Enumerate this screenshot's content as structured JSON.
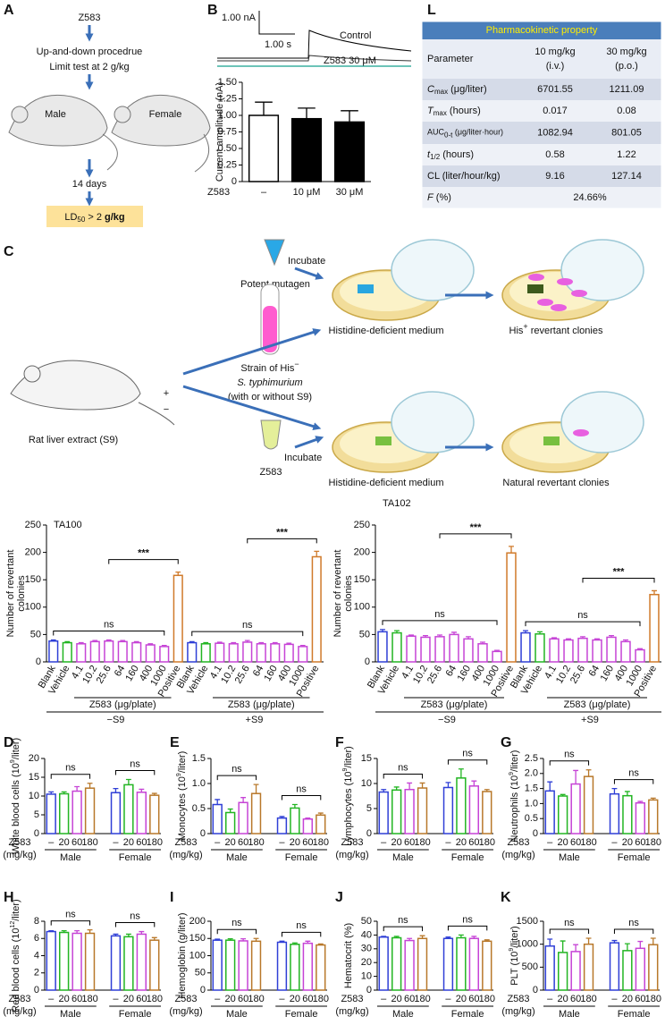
{
  "panel_labels": [
    "A",
    "B",
    "C",
    "D",
    "E",
    "F",
    "G",
    "H",
    "I",
    "J",
    "K",
    "L"
  ],
  "panel_a": {
    "start": "Z583",
    "step1": "Up-and-down procedrue",
    "step2": "Limit test at 2 g/kg",
    "male": "Male",
    "female": "Female",
    "duration": "14 days",
    "result": {
      "main": "LD",
      "sub": "50",
      "rest": " > 2 ",
      "unit": "g/kg"
    }
  },
  "panel_b_trace": {
    "scale_current": "1.00 nA",
    "scale_time": "1.00 s",
    "control": "Control",
    "treated": "Z583 30 μM"
  },
  "panel_c": {
    "incubate": "Incubate",
    "mutagen": "Potent mutagen",
    "extract": "Rat liver extract (S9)",
    "plus": "+",
    "minus": "−",
    "strain": "Strain of His",
    "strain_sup": "−",
    "species": "S. typhimurium",
    "strain_note": "(with or without S9)",
    "compound": "Z583",
    "medium": "Histidine-deficient medium",
    "his": "His",
    "his_sup": "+",
    "revertant": " revertant clonies",
    "natural": "Natural revertant clonies"
  },
  "table": {
    "title": "Pharmacokinetic property",
    "header": [
      [
        "Parameter"
      ],
      [
        "10 mg/kg",
        "(i.v.)"
      ],
      [
        "30 mg/kg",
        "(p.o.)"
      ]
    ],
    "rows": [
      {
        "parameter": [
          {
            "text": "C",
            "style": "italic"
          },
          {
            "text": "max",
            "style": "sub"
          },
          {
            "text": " (μg/liter)"
          }
        ],
        "values": [
          "6701.55",
          "1211.09"
        ]
      },
      {
        "parameter": [
          {
            "text": "T",
            "style": "italic"
          },
          {
            "text": "max",
            "style": "sub"
          },
          {
            "text": " (hours)"
          }
        ],
        "values": [
          "0.017",
          "0.08"
        ]
      },
      {
        "parameter": [
          {
            "text": "AUC",
            "style": "small"
          },
          {
            "text": "0-t",
            "style": "sub"
          },
          {
            "text": " (μg/liter·hour)",
            "style": "small"
          }
        ],
        "values": [
          "1082.94",
          "801.05"
        ]
      },
      {
        "parameter": [
          {
            "text": "t",
            "style": "italic"
          },
          {
            "text": "1/2",
            "style": "sub"
          },
          {
            "text": " (hours)"
          }
        ],
        "values": [
          "0.58",
          "1.22"
        ]
      },
      {
        "parameter": [
          {
            "text": "CL (liter/hour/kg)"
          }
        ],
        "values": [
          "9.16",
          "127.14"
        ]
      },
      {
        "parameter": [
          {
            "text": "F",
            "style": "italic"
          },
          {
            "text": " (%)"
          }
        ],
        "values": [
          "24.66%"
        ]
      }
    ]
  },
  "chart_data": [
    {
      "type": "bar",
      "bar_fill": "solid",
      "y_label": "Current amplitude (nA)",
      "x_label": "Z583",
      "categories": [
        "–",
        "10 μM",
        "30 μM"
      ],
      "values": [
        1.0,
        0.95,
        0.9
      ],
      "errors": [
        0.2,
        0.16,
        0.17
      ],
      "colors": [
        "#ffffff",
        "#000000",
        "#000000"
      ],
      "ylim": [
        0,
        1.5
      ],
      "yticks": [
        0,
        0.25,
        {
          "value": 0.5,
          "label": "0.50"
        },
        0.75,
        {
          "value": 1,
          "label": "1.00"
        },
        1.25,
        {
          "value": 1.5,
          "label": "1.50"
        }
      ]
    },
    {
      "type": "bar",
      "bar_fill": "outline",
      "title": "TA100",
      "y_label": [
        "Number of revertant",
        "colonies"
      ],
      "categories": [
        "Blank",
        "Vehicle",
        "4.1",
        "10.2",
        "25.6",
        "64",
        "160",
        "400",
        "1000",
        "Positive",
        "Blank",
        "Vehicle",
        "4.1",
        "10.2",
        "25.6",
        "64",
        "160",
        "400",
        "1000",
        "Positive"
      ],
      "values": [
        38,
        35,
        33,
        37,
        38,
        37,
        35,
        31,
        28,
        158,
        35,
        33,
        34,
        33,
        36,
        33,
        33,
        32,
        28,
        192
      ],
      "errors": [
        2,
        2,
        2,
        2,
        2,
        2,
        2,
        2,
        2,
        6,
        2,
        2,
        2,
        2,
        3,
        2,
        2,
        2,
        2,
        10
      ],
      "colors": [
        "#2f3fd6",
        "#22b522",
        "#c644d6",
        "#c644d6",
        "#c644d6",
        "#c644d6",
        "#c644d6",
        "#c644d6",
        "#c644d6",
        "#d07a2a",
        "#2f3fd6",
        "#22b522",
        "#c644d6",
        "#c644d6",
        "#c644d6",
        "#c644d6",
        "#c644d6",
        "#c644d6",
        "#c644d6",
        "#d07a2a"
      ],
      "group_axis": "Z583 (μg/plate)",
      "groups": [
        "−S9",
        "+S9"
      ],
      "annotations": [
        "ns",
        "***",
        "ns",
        "***"
      ],
      "ylim": [
        0,
        250
      ],
      "yticks": [
        0,
        50,
        100,
        150,
        200,
        250
      ]
    },
    {
      "type": "bar",
      "bar_fill": "outline",
      "title": "TA102",
      "y_label": [
        "Number of revertant",
        "colonies"
      ],
      "categories": [
        "Blank",
        "Vehicle",
        "4.1",
        "10.2",
        "25.6",
        "64",
        "160",
        "400",
        "1000",
        "Positive",
        "Blank",
        "Vehicle",
        "4.1",
        "10.2",
        "25.6",
        "64",
        "160",
        "400",
        "1000",
        "Positive"
      ],
      "values": [
        55,
        53,
        47,
        45,
        46,
        50,
        42,
        33,
        19,
        199,
        53,
        51,
        42,
        40,
        43,
        40,
        45,
        37,
        22,
        123
      ],
      "errors": [
        4,
        4,
        2,
        3,
        3,
        4,
        4,
        3,
        2,
        12,
        4,
        4,
        2,
        2,
        3,
        2,
        3,
        3,
        2,
        7
      ],
      "colors": [
        "#2f3fd6",
        "#22b522",
        "#c644d6",
        "#c644d6",
        "#c644d6",
        "#c644d6",
        "#c644d6",
        "#c644d6",
        "#c644d6",
        "#d07a2a",
        "#2f3fd6",
        "#22b522",
        "#c644d6",
        "#c644d6",
        "#c644d6",
        "#c644d6",
        "#c644d6",
        "#c644d6",
        "#c644d6",
        "#d07a2a"
      ],
      "group_axis": "Z583 (μg/plate)",
      "groups": [
        "−S9",
        "+S9"
      ],
      "annotations": [
        "ns",
        "***",
        "ns",
        "***"
      ],
      "ylim": [
        0,
        250
      ],
      "yticks": [
        0,
        50,
        100,
        150,
        200,
        250
      ]
    },
    {
      "type": "bar",
      "bar_fill": "outline",
      "y_label": [
        "White blood cells (10",
        "9",
        "/liter)"
      ],
      "x_label": [
        "Z583",
        "(mg/kg)"
      ],
      "categories": [
        "–",
        "20",
        "60",
        "180",
        "–",
        "20",
        "60",
        "180"
      ],
      "values": [
        10.5,
        10.6,
        11.3,
        12.1,
        10.9,
        13.0,
        11.0,
        10.2
      ],
      "errors": [
        0.6,
        0.5,
        1.2,
        1.3,
        1.1,
        1.4,
        0.8,
        0.5
      ],
      "colors": [
        "#2f3fd6",
        "#22b522",
        "#c644d6",
        "#b8782a",
        "#2f3fd6",
        "#22b522",
        "#c644d6",
        "#b8782a"
      ],
      "groups": [
        "Male",
        "Female"
      ],
      "annotations": [
        "ns",
        "ns"
      ],
      "ylim": [
        0,
        20
      ],
      "yticks": [
        0,
        5,
        10,
        15,
        20
      ]
    },
    {
      "type": "bar",
      "bar_fill": "outline",
      "y_label": [
        "Monocytes (10",
        "9",
        "/liter)"
      ],
      "x_label": [
        "Z583",
        "(mg/kg)"
      ],
      "categories": [
        "–",
        "20",
        "60",
        "180",
        "–",
        "20",
        "60",
        "180"
      ],
      "values": [
        0.58,
        0.42,
        0.62,
        0.8,
        0.31,
        0.51,
        0.29,
        0.37
      ],
      "errors": [
        0.1,
        0.07,
        0.1,
        0.18,
        0.03,
        0.07,
        0.02,
        0.04
      ],
      "colors": [
        "#2f3fd6",
        "#22b522",
        "#c644d6",
        "#b8782a",
        "#2f3fd6",
        "#22b522",
        "#c644d6",
        "#b8782a"
      ],
      "groups": [
        "Male",
        "Female"
      ],
      "annotations": [
        "ns",
        "ns"
      ],
      "ylim": [
        0,
        1.5
      ],
      "yticks": [
        0,
        0.5,
        {
          "value": 1,
          "label": "1.0"
        },
        1.5
      ]
    },
    {
      "type": "bar",
      "bar_fill": "outline",
      "y_label": [
        "Lymphocytes (10",
        "9",
        "/liter)"
      ],
      "x_label": [
        "Z583",
        "(mg/kg)"
      ],
      "categories": [
        "–",
        "20",
        "60",
        "180",
        "–",
        "20",
        "60",
        "180"
      ],
      "values": [
        8.3,
        8.7,
        8.8,
        9.1,
        9.2,
        11.1,
        9.5,
        8.4
      ],
      "errors": [
        0.5,
        0.6,
        1.3,
        1.0,
        1.0,
        1.8,
        1.0,
        0.4
      ],
      "colors": [
        "#2f3fd6",
        "#22b522",
        "#c644d6",
        "#b8782a",
        "#2f3fd6",
        "#22b522",
        "#c644d6",
        "#b8782a"
      ],
      "groups": [
        "Male",
        "Female"
      ],
      "annotations": [
        "ns",
        "ns"
      ],
      "ylim": [
        0,
        15
      ],
      "yticks": [
        0,
        5,
        10,
        15
      ]
    },
    {
      "type": "bar",
      "bar_fill": "outline",
      "y_label": [
        "Neutrophils (10",
        "9",
        "/liter)"
      ],
      "x_label": [
        "Z583",
        "(mg/kg)"
      ],
      "categories": [
        "–",
        "20",
        "60",
        "180",
        "–",
        "20",
        "60",
        "180"
      ],
      "values": [
        1.42,
        1.25,
        1.65,
        1.9,
        1.32,
        1.26,
        1.02,
        1.12
      ],
      "errors": [
        0.3,
        0.05,
        0.45,
        0.22,
        0.18,
        0.14,
        0.05,
        0.06
      ],
      "colors": [
        "#2f3fd6",
        "#22b522",
        "#c644d6",
        "#b8782a",
        "#2f3fd6",
        "#22b522",
        "#c644d6",
        "#b8782a"
      ],
      "groups": [
        "Male",
        "Female"
      ],
      "annotations": [
        "ns",
        "ns"
      ],
      "ylim": [
        0,
        2.5
      ],
      "yticks": [
        0,
        0.5,
        {
          "value": 1,
          "label": "1.0"
        },
        1.5,
        {
          "value": 2,
          "label": "2.0"
        },
        2.5
      ]
    },
    {
      "type": "bar",
      "bar_fill": "outline",
      "y_label": [
        "Red blood cells (10",
        "12",
        "/liter)"
      ],
      "x_label": [
        "Z583",
        "(mg/kg)"
      ],
      "categories": [
        "–",
        "20",
        "60",
        "180",
        "–",
        "20",
        "60",
        "180"
      ],
      "values": [
        6.8,
        6.7,
        6.6,
        6.6,
        6.3,
        6.2,
        6.5,
        5.8
      ],
      "errors": [
        0.1,
        0.2,
        0.3,
        0.4,
        0.2,
        0.3,
        0.3,
        0.3
      ],
      "colors": [
        "#2f3fd6",
        "#22b522",
        "#c644d6",
        "#b8782a",
        "#2f3fd6",
        "#22b522",
        "#c644d6",
        "#b8782a"
      ],
      "groups": [
        "Male",
        "Female"
      ],
      "annotations": [
        "ns",
        "ns"
      ],
      "ylim": [
        0,
        8
      ],
      "yticks": [
        0,
        2,
        4,
        6,
        8
      ]
    },
    {
      "type": "bar",
      "bar_fill": "outline",
      "y_label": [
        "Hemoglobin (g/liter)"
      ],
      "x_label": [
        "Z583",
        "(mg/kg)"
      ],
      "categories": [
        "–",
        "20",
        "60",
        "180",
        "–",
        "20",
        "60",
        "180"
      ],
      "values": [
        145,
        145,
        143,
        142,
        139,
        133,
        136,
        131
      ],
      "errors": [
        3,
        4,
        6,
        8,
        3,
        4,
        6,
        3
      ],
      "colors": [
        "#2f3fd6",
        "#22b522",
        "#c644d6",
        "#b8782a",
        "#2f3fd6",
        "#22b522",
        "#c644d6",
        "#b8782a"
      ],
      "groups": [
        "Male",
        "Female"
      ],
      "annotations": [
        "ns",
        "ns"
      ],
      "ylim": [
        0,
        200
      ],
      "yticks": [
        0,
        50,
        100,
        150,
        200
      ]
    },
    {
      "type": "bar",
      "bar_fill": "outline",
      "y_label": [
        "Hematocrit (%)"
      ],
      "x_label": [
        "Z583",
        "(mg/kg)"
      ],
      "categories": [
        "–",
        "20",
        "60",
        "180",
        "–",
        "20",
        "60",
        "180"
      ],
      "values": [
        38.5,
        38,
        36,
        37.5,
        37.5,
        38,
        37.5,
        35.5
      ],
      "errors": [
        0.5,
        1,
        1.5,
        2,
        1,
        2,
        1.5,
        1
      ],
      "colors": [
        "#2f3fd6",
        "#22b522",
        "#c644d6",
        "#b8782a",
        "#2f3fd6",
        "#22b522",
        "#c644d6",
        "#b8782a"
      ],
      "groups": [
        "Male",
        "Female"
      ],
      "annotations": [
        "ns",
        "ns"
      ],
      "ylim": [
        0,
        50
      ],
      "yticks": [
        0,
        10,
        20,
        30,
        40,
        50
      ]
    },
    {
      "type": "bar",
      "bar_fill": "outline",
      "y_label": [
        "PLT (10",
        "9",
        "/liter)"
      ],
      "x_label": [
        "Z583",
        "(mg/kg)"
      ],
      "categories": [
        "–",
        "20",
        "60",
        "180",
        "–",
        "20",
        "60",
        "180"
      ],
      "values": [
        960,
        820,
        840,
        1000,
        1030,
        860,
        910,
        990
      ],
      "errors": [
        150,
        250,
        150,
        130,
        50,
        150,
        150,
        140
      ],
      "colors": [
        "#2f3fd6",
        "#22b522",
        "#c644d6",
        "#b8782a",
        "#2f3fd6",
        "#22b522",
        "#c644d6",
        "#b8782a"
      ],
      "groups": [
        "Male",
        "Female"
      ],
      "annotations": [
        "ns",
        "ns"
      ],
      "ylim": [
        0,
        1500
      ],
      "yticks": [
        0,
        500,
        1000,
        1500
      ]
    }
  ]
}
